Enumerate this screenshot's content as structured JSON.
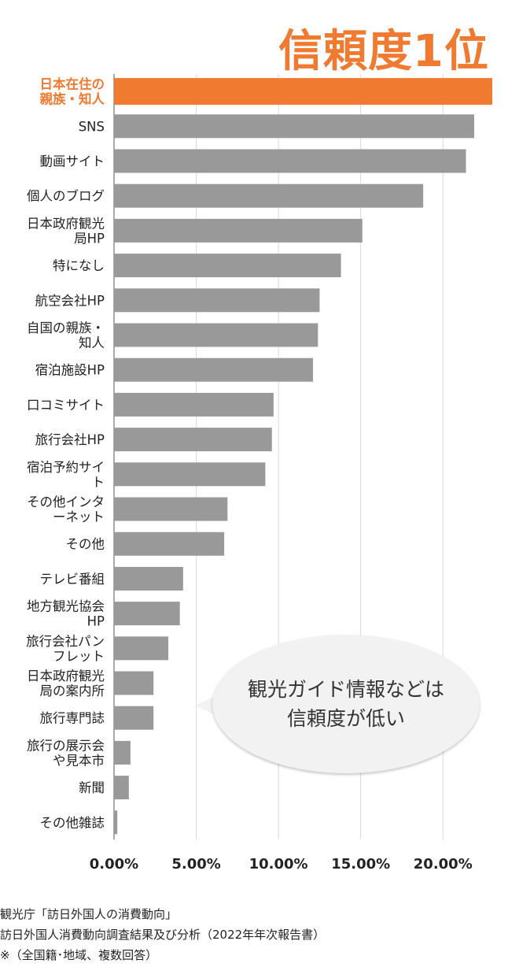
{
  "headline": "信頼度1位",
  "callout": {
    "line1": "観光ガイド情報などは",
    "line2": "信頼度が低い"
  },
  "colors": {
    "highlight": "#ef7a30",
    "bar": "#999999",
    "grid": "#d9d9d9"
  },
  "footer": [
    "観光庁「訪日外国人の消費動向」",
    "訪日外国人消費動向調査結果及び分析（2022年年次報告書）",
    "※（全国籍･地域、複数回答）"
  ],
  "chart_data": {
    "type": "bar",
    "orientation": "horizontal",
    "categories": [
      [
        "日本在住の",
        "親族・知人"
      ],
      [
        "SNS"
      ],
      [
        "動画サイト"
      ],
      [
        "個人のブログ"
      ],
      [
        "日本政府観光",
        "局HP"
      ],
      [
        "特になし"
      ],
      [
        "航空会社HP"
      ],
      [
        "自国の親族・",
        "知人"
      ],
      [
        "宿泊施設HP"
      ],
      [
        "口コミサイト"
      ],
      [
        "旅行会社HP"
      ],
      [
        "宿泊予約サイ",
        "ト"
      ],
      [
        "その他インタ",
        "ーネット"
      ],
      [
        "その他"
      ],
      [
        "テレビ番組"
      ],
      [
        "地方観光協会",
        "HP"
      ],
      [
        "旅行会社パン",
        "フレット"
      ],
      [
        "日本政府観光",
        "局の案内所"
      ],
      [
        "旅行専門誌"
      ],
      [
        "旅行の展示会",
        "や見本市"
      ],
      [
        "新聞"
      ],
      [
        "その他雑誌"
      ]
    ],
    "values": [
      23.0,
      21.9,
      21.4,
      18.8,
      15.1,
      13.8,
      12.5,
      12.4,
      12.1,
      9.7,
      9.6,
      9.2,
      6.9,
      6.7,
      4.2,
      4.0,
      3.3,
      2.4,
      2.4,
      1.0,
      0.9,
      0.2
    ],
    "highlight_index": 0,
    "xlim": [
      0,
      23.0
    ],
    "xticks": [
      0,
      5,
      10,
      15,
      20
    ],
    "xtick_labels": [
      "0.00%",
      "5.00%",
      "10.00%",
      "15.00%",
      "20.00%"
    ],
    "grid": true
  }
}
